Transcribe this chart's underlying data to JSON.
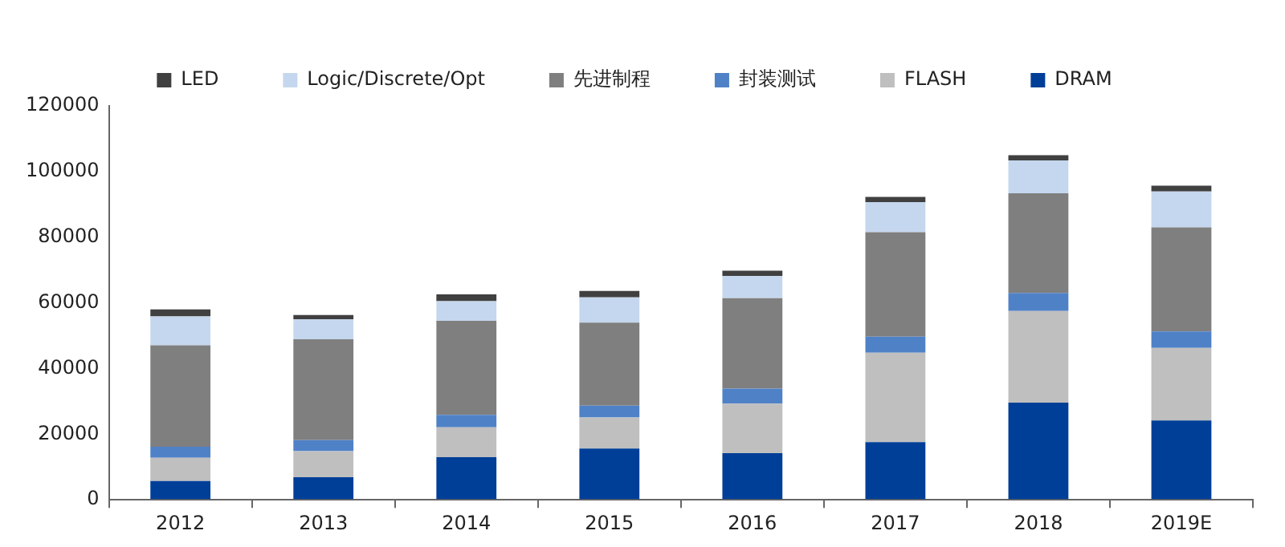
{
  "chart_data": {
    "type": "bar",
    "stacked": true,
    "legend": "top",
    "grid": false,
    "categories": [
      "2012",
      "2013",
      "2014",
      "2015",
      "2016",
      "2017",
      "2018",
      "2019E"
    ],
    "ylim": [
      0,
      120000
    ],
    "yticks": [
      0,
      20000,
      40000,
      60000,
      80000,
      100000,
      120000
    ],
    "series": [
      {
        "name": "DRAM",
        "color": "#003f98",
        "values": [
          5700,
          6900,
          13000,
          15600,
          14200,
          17600,
          29600,
          24200
        ]
      },
      {
        "name": "FLASH",
        "color": "#bfbfbf",
        "values": [
          7100,
          7900,
          9100,
          9500,
          15100,
          27200,
          27900,
          22100
        ]
      },
      {
        "name": "封装测试",
        "color": "#4f81c7",
        "values": [
          3400,
          3400,
          3800,
          3600,
          4600,
          4900,
          5500,
          5000
        ]
      },
      {
        "name": "先进制程",
        "color": "#7f7f7f",
        "values": [
          30900,
          30700,
          28600,
          25300,
          27500,
          31800,
          30400,
          31700
        ]
      },
      {
        "name": "Logic/Discrete/Opt",
        "color": "#c5d7ee",
        "values": [
          8800,
          6100,
          6000,
          7700,
          6800,
          9200,
          10000,
          10900
        ]
      },
      {
        "name": "LED",
        "color": "#404040",
        "values": [
          2100,
          1300,
          2100,
          1900,
          1600,
          1600,
          1600,
          1800
        ]
      }
    ]
  }
}
